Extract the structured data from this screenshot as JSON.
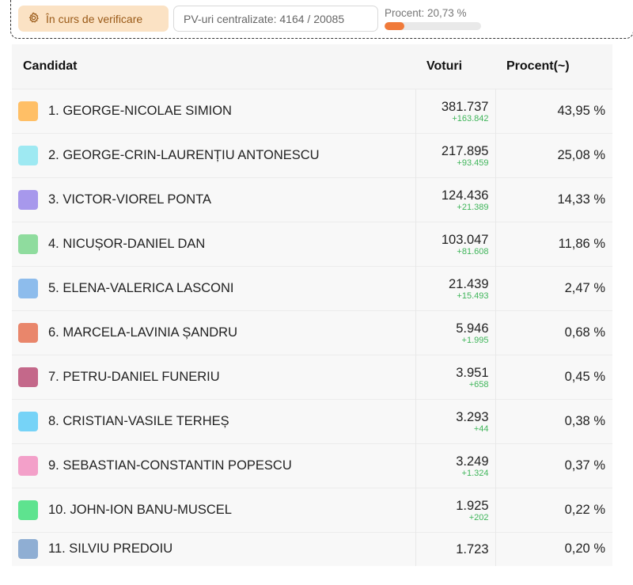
{
  "status": {
    "badge_label": "În curs de verificare",
    "pv_label": "PV-uri centralizate: 4164 / 20085",
    "procent_label": "Procent: 20,73 %",
    "progress_fraction": 0.2073,
    "progress_color": "#f07a3a"
  },
  "table": {
    "headers": {
      "candidate": "Candidat",
      "votes": "Voturi",
      "percent": "Procent(~)"
    },
    "rows": [
      {
        "label": "1. GEORGE-NICOLAE SIMION",
        "color": "#ffbf66",
        "votes": "381.737",
        "delta": "+163.842",
        "percent": "43,95 %"
      },
      {
        "label": "2. GEORGE-CRIN-LAURENȚIU ANTONESCU",
        "color": "#9ee9f2",
        "votes": "217.895",
        "delta": "+93.459",
        "percent": "25,08 %"
      },
      {
        "label": "3. VICTOR-VIOREL PONTA",
        "color": "#a798ec",
        "votes": "124.436",
        "delta": "+21.389",
        "percent": "14,33 %"
      },
      {
        "label": "4. NICUȘOR-DANIEL DAN",
        "color": "#8fdc9e",
        "votes": "103.047",
        "delta": "+81.608",
        "percent": "11,86 %"
      },
      {
        "label": "5. ELENA-VALERICA LASCONI",
        "color": "#8dbcec",
        "votes": "21.439",
        "delta": "+15.493",
        "percent": "2,47 %"
      },
      {
        "label": "6. MARCELA-LAVINIA ȘANDRU",
        "color": "#e9866b",
        "votes": "5.946",
        "delta": "+1.995",
        "percent": "0,68 %"
      },
      {
        "label": "7. PETRU-DANIEL FUNERIU",
        "color": "#c4688a",
        "votes": "3.951",
        "delta": "+658",
        "percent": "0,45 %"
      },
      {
        "label": "8. CRISTIAN-VASILE TERHEȘ",
        "color": "#76d3f7",
        "votes": "3.293",
        "delta": "+44",
        "percent": "0,38 %"
      },
      {
        "label": "9. SEBASTIAN-CONSTANTIN POPESCU",
        "color": "#f3a0c9",
        "votes": "3.249",
        "delta": "+1.324",
        "percent": "0,37 %"
      },
      {
        "label": "10. JOHN-ION BANU-MUSCEL",
        "color": "#5ee38f",
        "votes": "1.925",
        "delta": "+202",
        "percent": "0,22 %"
      },
      {
        "label": "11. SILVIU PREDOIU",
        "color": "#8faed3",
        "votes": "1.723",
        "delta": "",
        "percent": "0,20 %"
      }
    ]
  }
}
